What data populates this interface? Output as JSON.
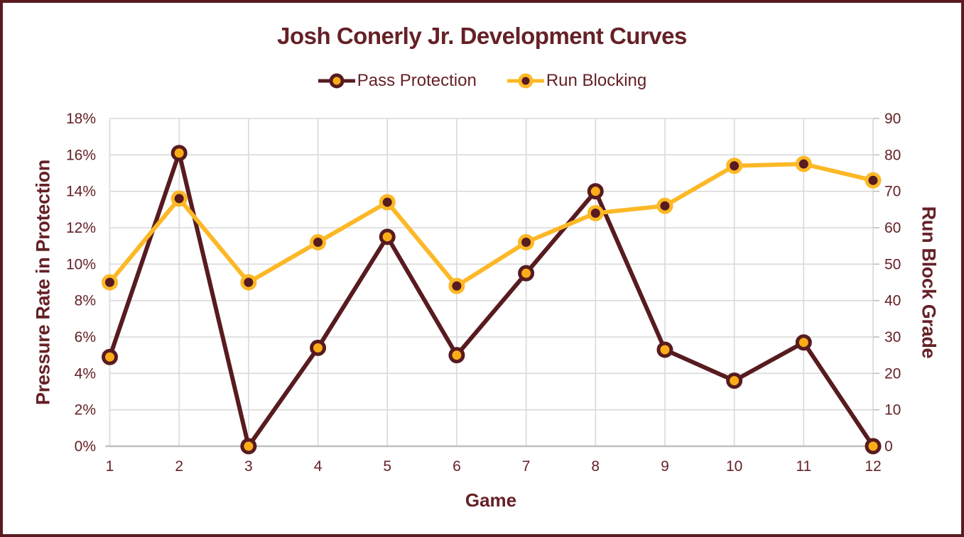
{
  "title": "Josh Conerly Jr. Development Curves",
  "colors": {
    "background": "#FFFFFF",
    "border": "#5A1B20",
    "text": "#652126",
    "grid": "#D9D9D9",
    "axis_line": "#BFBFBF"
  },
  "chart_data": {
    "type": "line",
    "title": "Josh Conerly Jr. Development Curves",
    "xlabel": "Game",
    "ylabel_left": "Pressure Rate in Protection",
    "ylabel_right": "Run Block Grade",
    "categories": [
      "1",
      "2",
      "3",
      "4",
      "5",
      "6",
      "7",
      "8",
      "9",
      "10",
      "11",
      "12"
    ],
    "series": [
      {
        "name": "Pass Protection",
        "axis": "left",
        "unit": "percent",
        "values": [
          4.9,
          16.1,
          0,
          5.4,
          11.5,
          5.0,
          9.5,
          14.0,
          5.3,
          3.6,
          5.7,
          0
        ],
        "line_color": "#571B20",
        "marker_fill": "#FBAD18",
        "marker_ring": "#571B20"
      },
      {
        "name": "Run Blocking",
        "axis": "right",
        "unit": "grade",
        "values": [
          45,
          68,
          45,
          56,
          67,
          44,
          56,
          64,
          66,
          77,
          77.5,
          73
        ],
        "line_color": "#FCB826",
        "marker_fill": "#571B20",
        "marker_ring": "#FCB826"
      }
    ],
    "left_axis": {
      "min": 0,
      "max": 18,
      "step": 2,
      "tick_labels": [
        "0%",
        "2%",
        "4%",
        "6%",
        "8%",
        "10%",
        "12%",
        "14%",
        "16%",
        "18%"
      ]
    },
    "right_axis": {
      "min": 0,
      "max": 90,
      "step": 10,
      "tick_labels": [
        "0",
        "10",
        "20",
        "30",
        "40",
        "50",
        "60",
        "70",
        "80",
        "90"
      ]
    },
    "grid": true,
    "legend_position": "top"
  }
}
